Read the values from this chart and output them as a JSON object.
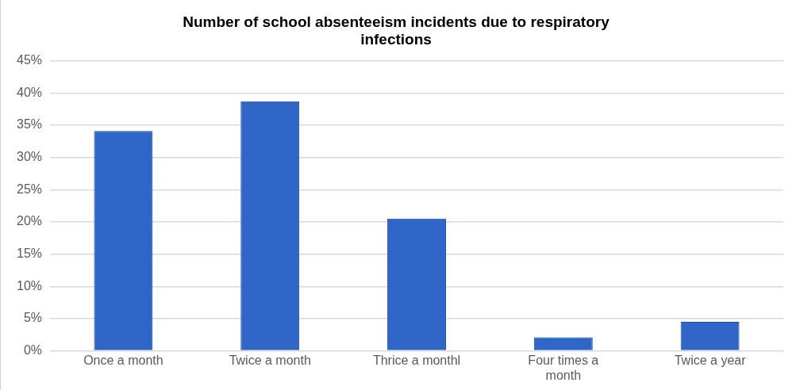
{
  "chart_data": {
    "type": "bar",
    "title": "Number of school absenteeism incidents due to respiratory infections",
    "categories": [
      "Once a month",
      "Twice a month",
      "Thrice a monthl",
      "Four times a month",
      "Twice a year"
    ],
    "values": [
      34.1,
      38.7,
      20.5,
      2.1,
      4.5
    ],
    "color": "#2f66c8",
    "ylim": [
      0,
      45
    ],
    "yticks": [
      {
        "value": 0,
        "label": "0%"
      },
      {
        "value": 5,
        "label": "5%"
      },
      {
        "value": 10,
        "label": "10%"
      },
      {
        "value": 15,
        "label": "15%"
      },
      {
        "value": 20,
        "label": "20%"
      },
      {
        "value": 25,
        "label": "25%"
      },
      {
        "value": 30,
        "label": "30%"
      },
      {
        "value": 35,
        "label": "35%"
      },
      {
        "value": 40,
        "label": "40%"
      },
      {
        "value": 45,
        "label": "45%"
      }
    ],
    "grid": "y",
    "legend": false
  }
}
